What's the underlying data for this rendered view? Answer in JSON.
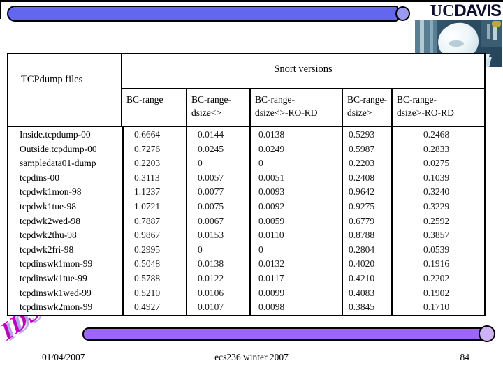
{
  "slide": {
    "logo": {
      "uc": "UC",
      "davis": "DAVIS"
    },
    "wordart_text": "IDS",
    "footer": {
      "date": "01/04/2007",
      "center": "ecs236 winter 2007",
      "page_number": "84"
    },
    "colors": {
      "top_bar": "#6366ee",
      "top_bar_cap": "#9a9af0",
      "bottom_bar": "#9d66f6",
      "bottom_bar_cap": "#cdb2f5",
      "wordart": "#bf00bf",
      "wordart_shadow": "#b9a3ea"
    }
  },
  "table": {
    "corner_header": "TCPdump files",
    "group_header": "Snort versions",
    "columns": [
      {
        "label": "BC-range",
        "lines": [
          "BC-range"
        ]
      },
      {
        "label": "BC-range-dsize<>",
        "lines": [
          "BC-range-",
          "dsize<>"
        ]
      },
      {
        "label": "BC-range-dsize<>-RO-RD",
        "lines": [
          "BC-range-",
          "dsize<>-RO-RD"
        ]
      },
      {
        "label": "BC-range-dsize>",
        "lines": [
          "BC-range-",
          "dsize>"
        ]
      },
      {
        "label": "BC-range-dsize>-RO-RD",
        "lines": [
          "BC-range-",
          "dsize>-RO-RD"
        ]
      }
    ],
    "rows": [
      {
        "file": "Inside.tcpdump-00",
        "values": [
          "0.6664",
          "0.0144",
          "0.0138",
          "0.5293",
          "0.2468"
        ]
      },
      {
        "file": "Outside.tcpdump-00",
        "values": [
          "0.7276",
          "0.0245",
          "0.0249",
          "0.5987",
          "0.2833"
        ]
      },
      {
        "file": "sampledata01-dump",
        "values": [
          "0.2203",
          "0",
          "0",
          "0.2203",
          "0.0275"
        ]
      },
      {
        "file": "tcpdins-00",
        "values": [
          "0.3113",
          "0.0057",
          "0.0051",
          "0.2408",
          "0.1039"
        ]
      },
      {
        "file": "tcpdwk1mon-98",
        "values": [
          "1.1237",
          "0.0077",
          "0.0093",
          "0.9642",
          "0.3240"
        ]
      },
      {
        "file": "tcpdwk1tue-98",
        "values": [
          "1.0721",
          "0.0075",
          "0.0092",
          "0.9275",
          "0.3229"
        ]
      },
      {
        "file": "tcpdwk2wed-98",
        "values": [
          "0.7887",
          "0.0067",
          "0.0059",
          "0.6779",
          "0.2592"
        ]
      },
      {
        "file": "tcpdwk2thu-98",
        "values": [
          "0.9867",
          "0.0153",
          "0.0110",
          "0.8788",
          "0.3857"
        ]
      },
      {
        "file": "tcpdwk2fri-98",
        "values": [
          "0.2995",
          "0",
          "0",
          "0.2804",
          "0.0539"
        ]
      },
      {
        "file": "tcpdinswk1mon-99",
        "values": [
          "0.5048",
          "0.0138",
          "0.0132",
          "0.4020",
          "0.1916"
        ]
      },
      {
        "file": "tcpdinswk1tue-99",
        "values": [
          "0.5788",
          "0.0122",
          "0.0117",
          "0.4210",
          "0.2202"
        ]
      },
      {
        "file": "tcpdinswk1wed-99",
        "values": [
          "0.5210",
          "0.0106",
          "0.0099",
          "0.4083",
          "0.1902"
        ]
      },
      {
        "file": "tcpdinswk2mon-99",
        "values": [
          "0.4927",
          "0.0107",
          "0.0098",
          "0.3845",
          "0.1710"
        ]
      }
    ]
  }
}
